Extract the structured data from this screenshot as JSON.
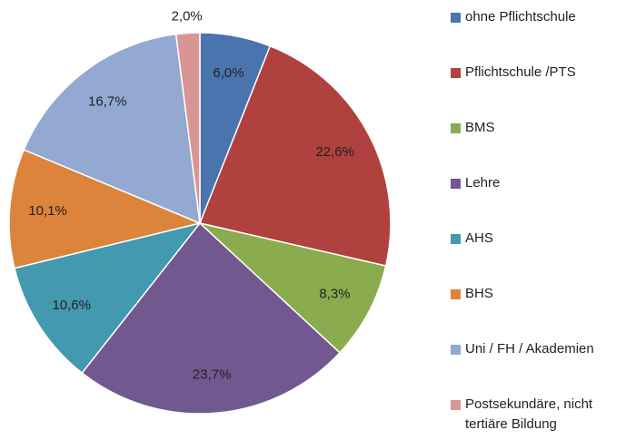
{
  "chart_data": {
    "type": "pie",
    "categories": [
      "ohne Pflichtschule",
      "Pflichtschule /PTS",
      "BMS",
      "Lehre",
      "AHS",
      "BHS",
      "Uni / FH / Akademien",
      "Postsekundäre, nicht tertiäre Bildung"
    ],
    "values": [
      6.0,
      22.6,
      8.3,
      23.7,
      10.6,
      10.1,
      16.7,
      2.0
    ],
    "value_labels": [
      "6,0%",
      "22,6%",
      "8,3%",
      "23,7%",
      "10,6%",
      "10,1%",
      "16,7%",
      "2,0%"
    ],
    "colors": [
      "#4a74ae",
      "#b0413e",
      "#8aac4e",
      "#71588f",
      "#4299b0",
      "#dc843c",
      "#93a9d2",
      "#d89594"
    ],
    "legend": "right"
  }
}
